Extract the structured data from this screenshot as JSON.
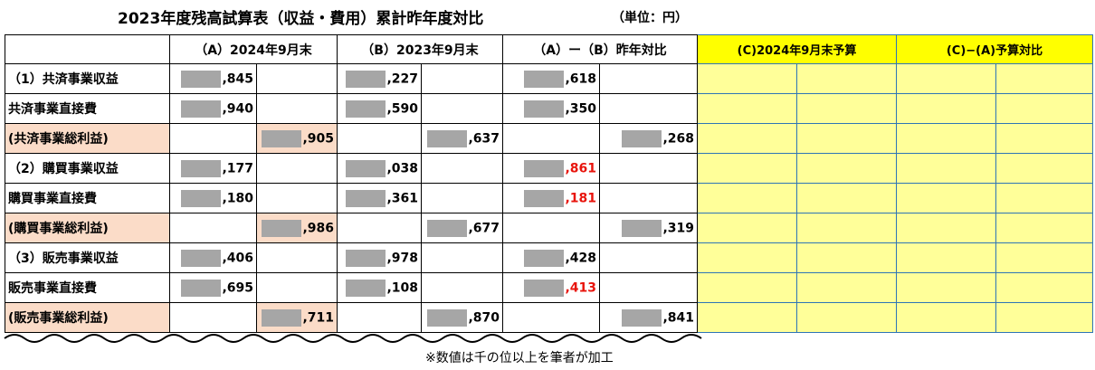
{
  "header": {
    "title": "2023年度残高試算表（収益・費用）累計昨年度対比",
    "unit": "（単位：円）"
  },
  "table": {
    "columns": [
      "（A）2024年9月末",
      "（B）2023年9月末",
      "（A）ー（B）昨年対比",
      "(C)2024年9月末予算",
      "(C)−(A)予算対比"
    ],
    "rows": [
      {
        "label": "（1）共済事業収益",
        "cells": [
          ",845",
          null,
          ",227",
          null,
          ",618",
          null
        ]
      },
      {
        "label": "共済事業直接費",
        "cells": [
          ",940",
          null,
          ",590",
          null,
          ",350",
          null
        ]
      },
      {
        "label": "(共済事業総利益)",
        "fill": "#fbdcc8",
        "cells": [
          null,
          ",905",
          null,
          ",637",
          null,
          ",268"
        ]
      },
      {
        "label": "（2）購買事業収益",
        "cells": [
          ",177",
          null,
          ",038",
          null,
          {
            "text": ",861",
            "color": "#e8140c"
          },
          null
        ]
      },
      {
        "label": "購買事業直接費",
        "cells": [
          ",180",
          null,
          ",361",
          null,
          {
            "text": ",181",
            "color": "#e8140c"
          },
          null
        ]
      },
      {
        "label": "(購買事業総利益)",
        "fill": "#fbdcc8",
        "cells": [
          null,
          ",986",
          null,
          ",677",
          null,
          ",319"
        ]
      },
      {
        "label": "（3）販売事業収益",
        "cells": [
          ",406",
          null,
          ",978",
          null,
          ",428",
          null
        ]
      },
      {
        "label": "販売事業直接費",
        "cells": [
          ",695",
          null,
          ",108",
          null,
          {
            "text": ",413",
            "color": "#e8140c"
          },
          null
        ]
      },
      {
        "label": "(販売事業総利益)",
        "fill": "#fbdcc8",
        "cells": [
          null,
          ",711",
          null,
          ",870",
          null,
          ",841"
        ]
      }
    ]
  },
  "footer": {
    "note": "※数値は千の位以上を筆者が加工"
  }
}
